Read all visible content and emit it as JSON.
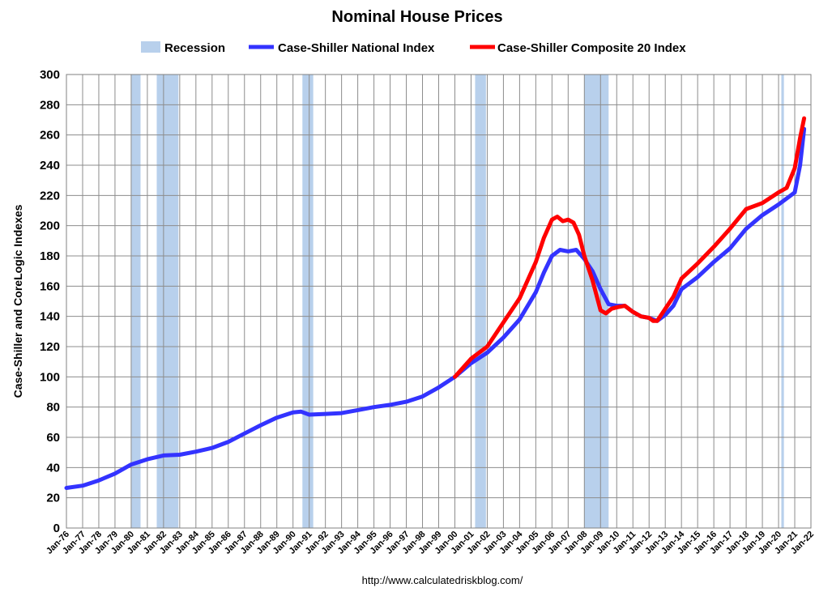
{
  "chart_data": {
    "type": "line",
    "title": "Nominal House Prices",
    "ylabel": "Case-Shiller and CoreLogic Indexes",
    "xlabel": "",
    "source": "http://www.calculatedriskblog.com/",
    "ylim": [
      0,
      300
    ],
    "yticks": [
      0,
      20,
      40,
      60,
      80,
      100,
      120,
      140,
      160,
      180,
      200,
      220,
      240,
      260,
      280,
      300
    ],
    "xlim": [
      1976.0,
      2022.0
    ],
    "xtick_labels": [
      "Jan-76",
      "Jan-77",
      "Jan-78",
      "Jan-79",
      "Jan-80",
      "Jan-81",
      "Jan-82",
      "Jan-83",
      "Jan-84",
      "Jan-85",
      "Jan-86",
      "Jan-87",
      "Jan-88",
      "Jan-89",
      "Jan-90",
      "Jan-91",
      "Jan-92",
      "Jan-93",
      "Jan-94",
      "Jan-95",
      "Jan-96",
      "Jan-97",
      "Jan-98",
      "Jan-99",
      "Jan-00",
      "Jan-01",
      "Jan-02",
      "Jan-03",
      "Jan-04",
      "Jan-05",
      "Jan-06",
      "Jan-07",
      "Jan-08",
      "Jan-09",
      "Jan-10",
      "Jan-11",
      "Jan-12",
      "Jan-13",
      "Jan-14",
      "Jan-15",
      "Jan-16",
      "Jan-17",
      "Jan-18",
      "Jan-19",
      "Jan-20",
      "Jan-21",
      "Jan-22"
    ],
    "grid": true,
    "legend_position": "top",
    "recession": {
      "name": "Recession",
      "color": "#b8d0ec",
      "periods": [
        [
          1980.0,
          1980.58
        ],
        [
          1981.58,
          1982.92
        ],
        [
          1990.58,
          1991.25
        ],
        [
          2001.25,
          2001.92
        ],
        [
          2008.0,
          2009.5
        ],
        [
          2020.17,
          2020.33
        ]
      ]
    },
    "series": [
      {
        "name": "Case-Shiller National Index",
        "color": "#3333ff",
        "x": [
          1976.0,
          1977.0,
          1978.0,
          1979.0,
          1980.0,
          1981.0,
          1982.0,
          1983.0,
          1984.0,
          1985.0,
          1986.0,
          1987.0,
          1988.0,
          1989.0,
          1990.0,
          1990.5,
          1991.0,
          1992.0,
          1993.0,
          1994.0,
          1995.0,
          1996.0,
          1997.0,
          1998.0,
          1999.0,
          2000.0,
          2001.0,
          2002.0,
          2003.0,
          2004.0,
          2005.0,
          2005.5,
          2006.0,
          2006.5,
          2007.0,
          2007.5,
          2008.0,
          2008.5,
          2009.0,
          2009.5,
          2010.0,
          2010.5,
          2011.0,
          2011.5,
          2012.0,
          2012.5,
          2013.0,
          2013.5,
          2014.0,
          2015.0,
          2016.0,
          2017.0,
          2018.0,
          2019.0,
          2020.0,
          2020.5,
          2021.0,
          2021.33,
          2021.58
        ],
        "y": [
          26.5,
          28,
          31.5,
          36,
          42,
          45.5,
          48,
          48.5,
          50.5,
          53,
          57,
          62.5,
          68,
          73,
          76.5,
          77,
          75,
          75.5,
          76,
          78,
          80,
          81.5,
          83.5,
          87,
          93,
          100,
          109,
          116,
          126,
          138,
          156,
          169,
          180,
          184,
          183,
          184,
          178,
          170,
          158,
          148,
          147,
          147,
          143,
          140,
          139,
          137,
          141,
          147,
          158,
          166,
          176,
          185,
          198,
          207,
          214,
          218,
          222,
          240,
          264
        ]
      },
      {
        "name": "Case-Shiller Composite 20 Index",
        "color": "#ff0000",
        "x": [
          2000.0,
          2001.0,
          2002.0,
          2003.0,
          2004.0,
          2005.0,
          2005.5,
          2006.0,
          2006.33,
          2006.67,
          2007.0,
          2007.33,
          2007.67,
          2008.0,
          2008.5,
          2009.0,
          2009.33,
          2009.67,
          2010.0,
          2010.5,
          2011.0,
          2011.5,
          2012.0,
          2012.25,
          2012.5,
          2013.0,
          2013.5,
          2014.0,
          2015.0,
          2016.0,
          2017.0,
          2018.0,
          2019.0,
          2020.0,
          2020.5,
          2021.0,
          2021.33,
          2021.58
        ],
        "y": [
          100,
          112,
          120,
          136,
          152,
          176,
          192,
          204,
          206,
          203,
          204,
          202,
          194,
          180,
          164,
          144,
          142,
          145,
          146,
          147,
          143,
          140,
          139,
          137,
          137,
          145,
          153,
          165,
          175,
          186,
          198,
          211,
          215,
          222,
          225,
          238,
          258,
          271
        ]
      }
    ]
  }
}
